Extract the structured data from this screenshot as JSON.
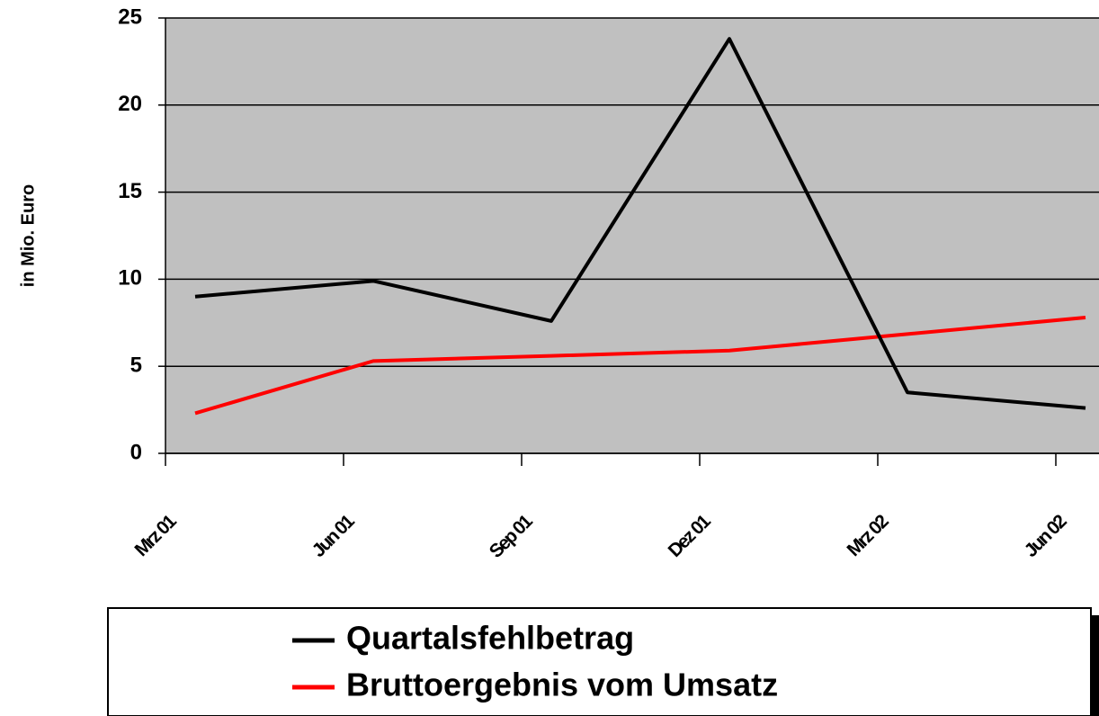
{
  "chart_data": {
    "type": "line",
    "y_label": "in Mio. Euro",
    "categories": [
      "Mrz 01",
      "Jun 01",
      "Sep 01",
      "Dez 01",
      "Mrz 02",
      "Jun 02"
    ],
    "series": [
      {
        "name": "Quartalsfehlbetrag",
        "color": "#000000",
        "values": [
          9.0,
          9.9,
          7.6,
          23.8,
          3.5,
          2.6
        ]
      },
      {
        "name": "Bruttoergebnis vom Umsatz",
        "color": "#ff0000",
        "values": [
          2.3,
          5.3,
          5.6,
          5.9,
          6.85,
          7.8
        ]
      }
    ],
    "ylim": [
      0,
      25
    ],
    "yticks": [
      0,
      5,
      10,
      15,
      20,
      25
    ],
    "grid": true,
    "legend": "bottom"
  }
}
